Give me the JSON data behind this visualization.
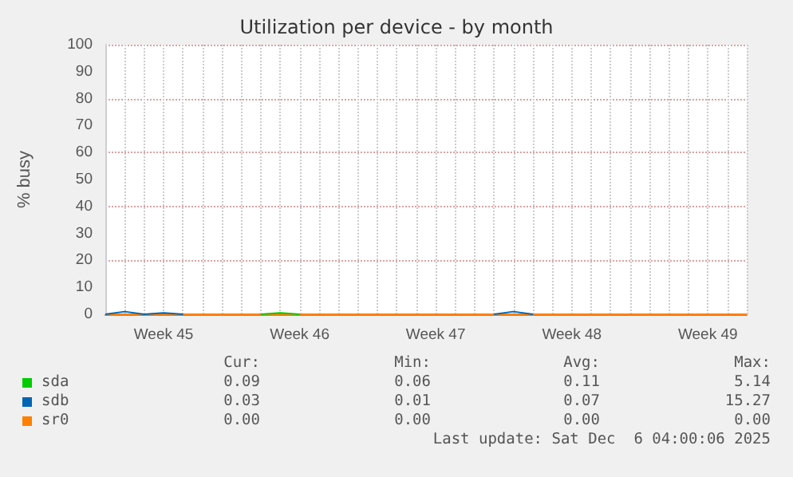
{
  "chart_data": {
    "type": "line",
    "title": "Utilization per device - by month",
    "ylabel": "% busy",
    "categories": [
      null,
      null,
      null,
      "Week 45",
      null,
      null,
      null,
      null,
      null,
      null,
      "Week 46",
      null,
      null,
      null,
      null,
      null,
      null,
      "Week 47",
      null,
      null,
      null,
      null,
      null,
      null,
      "Week 48",
      null,
      null,
      null,
      null,
      null,
      null,
      "Week 49",
      null,
      null
    ],
    "series": [
      {
        "name": "sda",
        "color": "#00cc00",
        "values": [
          null,
          null,
          null,
          null,
          null,
          null,
          null,
          null,
          0,
          0.5,
          0,
          null,
          null,
          null,
          null,
          null,
          null,
          null,
          null,
          null,
          null,
          null,
          null,
          null,
          null,
          null,
          null,
          null,
          null,
          null,
          null,
          null,
          null,
          null
        ]
      },
      {
        "name": "sdb",
        "color": "#0066b3",
        "values": [
          0,
          1,
          0,
          0.5,
          0,
          null,
          null,
          null,
          null,
          null,
          null,
          null,
          null,
          null,
          null,
          null,
          null,
          null,
          null,
          null,
          0,
          1,
          0,
          null,
          null,
          null,
          null,
          null,
          null,
          null,
          null,
          null,
          null,
          null
        ]
      },
      {
        "name": "sr0",
        "color": "#ff8000",
        "values": [
          0,
          0,
          0,
          0,
          0,
          0,
          0,
          0,
          0,
          0,
          0,
          0,
          0,
          0,
          0,
          0,
          0,
          0,
          0,
          0,
          0,
          0,
          0,
          0,
          0,
          0,
          0,
          0,
          0,
          0,
          0,
          0,
          0,
          0
        ]
      }
    ],
    "ylim": [
      0,
      100
    ],
    "yticks": [
      0,
      10,
      20,
      30,
      40,
      50,
      60,
      70,
      80,
      90,
      100
    ],
    "grid": true,
    "legend": "bottom",
    "marker": "none",
    "line_style": "solid",
    "annotations": [
      "Cur:",
      "Min:",
      "Avg:",
      "Max:",
      "0.09",
      "0.06",
      "0.11",
      "5.14",
      "0.03",
      "0.01",
      "0.07",
      "15.27",
      "0.00",
      "0.00",
      "0.00",
      "0.00",
      "Last update: Sat Dec  6 04:00:06 2025"
    ]
  }
}
